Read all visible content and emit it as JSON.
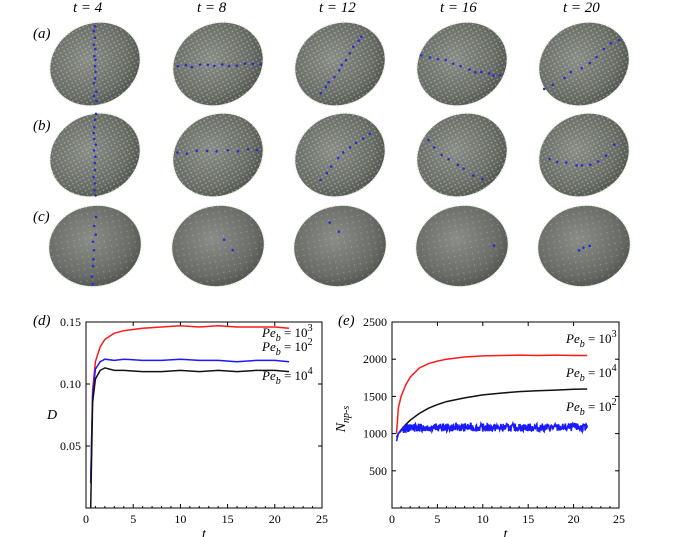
{
  "time_labels": [
    "t = 4",
    "t = 8",
    "t = 12",
    "t = 16",
    "t = 20"
  ],
  "row_labels": [
    "(a)",
    "(b)",
    "(c)"
  ],
  "panel_labels": {
    "d": "(d)",
    "e": "(e)"
  },
  "colors": {
    "ellipsoid": "#6e706c",
    "surface_dots": "#b6d9a8",
    "particles": "#2a2ad0",
    "pe_1e3": "#ff1a1a",
    "pe_1e2": "#1a1aff",
    "pe_1e4": "#111111"
  },
  "chart_data": [
    {
      "type": "line",
      "ylabel": "D",
      "xlabel": "t",
      "xlim": [
        0,
        25
      ],
      "ylim": [
        0,
        0.15
      ],
      "xticks": [
        "0",
        "5",
        "10",
        "15",
        "20",
        "25"
      ],
      "yticks": [
        "0.05",
        "0.10",
        "0.15"
      ],
      "series": [
        {
          "name": "Pe_b = 10^3",
          "label_main": "Pe",
          "label_sub": "b",
          "label_eq": " = 10",
          "label_sup": "3",
          "color": "#ff1a1a",
          "x": [
            0.5,
            0.7,
            1,
            1.5,
            2,
            3,
            4,
            6,
            8,
            10,
            12,
            14,
            16,
            18,
            20,
            21.5
          ],
          "y": [
            0.02,
            0.095,
            0.118,
            0.13,
            0.136,
            0.141,
            0.143,
            0.145,
            0.146,
            0.147,
            0.146,
            0.147,
            0.146,
            0.146,
            0.146,
            0.145
          ]
        },
        {
          "name": "Pe_b = 10^2",
          "label_main": "Pe",
          "label_sub": "b",
          "label_eq": " = 10",
          "label_sup": "2",
          "color": "#1a1aff",
          "x": [
            0.5,
            0.7,
            1,
            1.5,
            2,
            3,
            4,
            6,
            8,
            10,
            12,
            14,
            16,
            18,
            20,
            21.5
          ],
          "y": [
            0.02,
            0.09,
            0.112,
            0.118,
            0.12,
            0.119,
            0.12,
            0.119,
            0.119,
            0.12,
            0.119,
            0.119,
            0.118,
            0.119,
            0.119,
            0.118
          ]
        },
        {
          "name": "Pe_b = 10^4",
          "label_main": "Pe",
          "label_sub": "b",
          "label_eq": " = 10",
          "label_sup": "4",
          "color": "#111111",
          "x": [
            0.5,
            0.7,
            1,
            1.5,
            2,
            3,
            4,
            6,
            8,
            10,
            12,
            14,
            16,
            18,
            20,
            21.5
          ],
          "y": [
            0.0,
            0.085,
            0.104,
            0.111,
            0.113,
            0.111,
            0.111,
            0.11,
            0.11,
            0.111,
            0.11,
            0.111,
            0.11,
            0.111,
            0.111,
            0.11
          ]
        }
      ]
    },
    {
      "type": "line",
      "ylabel_main": "N",
      "ylabel_sub": "np-s",
      "xlabel": "t",
      "xlim": [
        0,
        25
      ],
      "ylim": [
        0,
        2500
      ],
      "xticks": [
        "0",
        "5",
        "10",
        "15",
        "20",
        "25"
      ],
      "yticks": [
        "500",
        "1000",
        "1500",
        "2000",
        "2500"
      ],
      "series": [
        {
          "name": "Pe_b = 10^3",
          "label_main": "Pe",
          "label_sub": "b",
          "label_eq": " = 10",
          "label_sup": "3",
          "color": "#ff1a1a",
          "x": [
            0.5,
            0.7,
            1,
            1.5,
            2,
            3,
            4,
            5,
            6,
            8,
            10,
            12,
            14,
            16,
            18,
            20,
            21.5
          ],
          "y": [
            1000,
            1350,
            1500,
            1650,
            1760,
            1880,
            1940,
            1975,
            2000,
            2030,
            2045,
            2050,
            2055,
            2050,
            2055,
            2050,
            2050
          ]
        },
        {
          "name": "Pe_b = 10^4",
          "label_main": "Pe",
          "label_sub": "b",
          "label_eq": " = 10",
          "label_sup": "4",
          "color": "#111111",
          "x": [
            0.5,
            0.7,
            1,
            1.5,
            2,
            3,
            4,
            5,
            6,
            8,
            10,
            12,
            14,
            16,
            18,
            20,
            21.5
          ],
          "y": [
            950,
            1000,
            1050,
            1120,
            1180,
            1270,
            1340,
            1390,
            1430,
            1480,
            1520,
            1545,
            1565,
            1575,
            1585,
            1595,
            1600
          ]
        },
        {
          "name": "Pe_b = 10^2",
          "label_main": "Pe",
          "label_sub": "b",
          "label_eq": " = 10",
          "label_sup": "2",
          "color": "#1a1aff",
          "x": [
            0.5,
            0.7,
            1,
            1.5,
            2,
            3,
            4,
            6,
            8,
            10,
            12,
            14,
            16,
            18,
            20,
            21.5
          ],
          "y": [
            900,
            1000,
            1040,
            1070,
            1080,
            1080,
            1085,
            1080,
            1085,
            1080,
            1080,
            1085,
            1080,
            1080,
            1085,
            1080
          ],
          "noisy": true
        }
      ]
    }
  ]
}
